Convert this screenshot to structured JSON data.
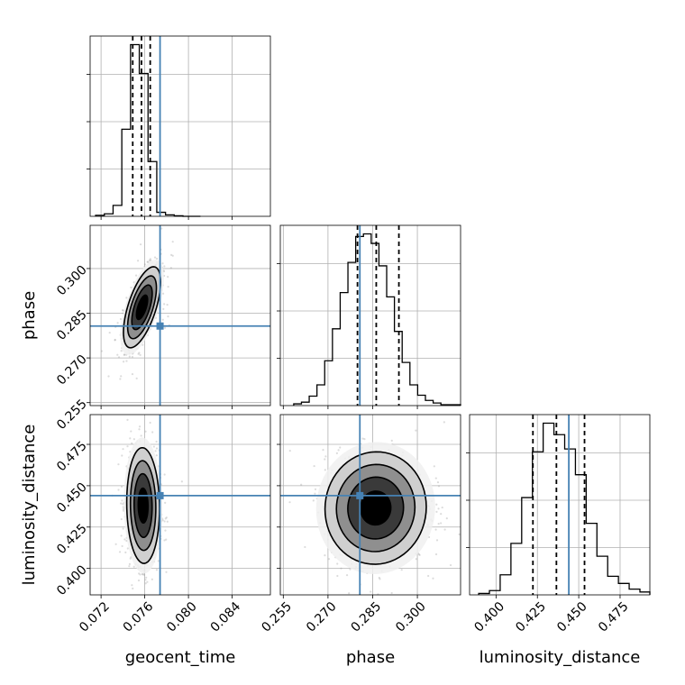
{
  "chart_data": {
    "type": "corner",
    "parameters": [
      {
        "id": "geocent_time",
        "label": "geocent_time",
        "range": [
          0.071,
          0.0875
        ],
        "ticks": [
          0.072,
          0.076,
          0.08,
          0.084
        ],
        "tick_labels": [
          "0.072",
          "0.076",
          "0.080",
          "0.084"
        ],
        "truth": 0.0774,
        "median": 0.0757,
        "quantile_low": 0.0749,
        "quantile_high": 0.0765,
        "histogram": {
          "edges": [
            0.0715,
            0.0723,
            0.0731,
            0.0739,
            0.0747,
            0.0755,
            0.0763,
            0.0771,
            0.0779,
            0.0787,
            0.0795,
            0.0803,
            0.0811
          ],
          "counts": [
            2,
            5,
            22,
            175,
            345,
            287,
            110,
            8,
            3,
            1,
            0,
            0
          ]
        }
      },
      {
        "id": "phase",
        "label": "phase",
        "range": [
          0.254,
          0.3145
        ],
        "ticks": [
          0.255,
          0.27,
          0.285,
          0.3
        ],
        "tick_labels": [
          "0.255",
          "0.270",
          "0.285",
          "0.300"
        ],
        "truth": 0.2807,
        "median": 0.2862,
        "quantile_low": 0.2799,
        "quantile_high": 0.2938,
        "histogram": {
          "edges": [
            0.2585,
            0.2611,
            0.2637,
            0.2663,
            0.2689,
            0.2715,
            0.2741,
            0.2767,
            0.2793,
            0.2819,
            0.2845,
            0.2871,
            0.2897,
            0.2923,
            0.2949,
            0.2975,
            0.3001,
            0.3027,
            0.3053,
            0.3079,
            0.3145
          ],
          "counts": [
            4,
            8,
            22,
            48,
            104,
            178,
            262,
            332,
            392,
            398,
            376,
            324,
            252,
            172,
            100,
            48,
            24,
            12,
            6,
            2
          ]
        }
      },
      {
        "id": "luminosity_distance",
        "label": "luminosity_distance",
        "range": [
          0.384,
          0.493
        ],
        "ticks": [
          0.4,
          0.425,
          0.45,
          0.475
        ],
        "tick_labels": [
          "0.400",
          "0.425",
          "0.450",
          "0.475"
        ],
        "truth": 0.444,
        "median": 0.4365,
        "quantile_low": 0.4223,
        "quantile_high": 0.4535,
        "histogram": {
          "edges": [
            0.3895,
            0.396,
            0.4025,
            0.409,
            0.4155,
            0.422,
            0.4285,
            0.435,
            0.4415,
            0.448,
            0.4545,
            0.461,
            0.4675,
            0.474,
            0.4805,
            0.487,
            0.493
          ],
          "counts": [
            2,
            6,
            28,
            72,
            136,
            200,
            240,
            224,
            204,
            168,
            100,
            54,
            26,
            16,
            8,
            4
          ]
        }
      }
    ],
    "pairs": [
      {
        "x": "geocent_time",
        "y": "phase",
        "truth": [
          0.0774,
          0.2807
        ],
        "mean": [
          0.07575,
          0.287
        ],
        "sd": [
          0.00085,
          0.0068
        ],
        "corr": 0.62
      },
      {
        "x": "geocent_time",
        "y": "luminosity_distance",
        "truth": [
          0.0774,
          0.444
        ],
        "mean": [
          0.07585,
          0.438
        ],
        "sd": [
          0.00075,
          0.0175
        ],
        "corr": -0.05
      },
      {
        "x": "phase",
        "y": "luminosity_distance",
        "truth": [
          0.2807,
          0.444
        ],
        "mean": [
          0.286,
          0.4365
        ],
        "sd": [
          0.0085,
          0.017
        ],
        "corr": 0.02
      }
    ],
    "diagonal_y_ticks": 3,
    "grid": true,
    "contour_levels_sigma": [
      0.6,
      1.1,
      1.55,
      2.0
    ],
    "colors": {
      "truth": "#4682b4",
      "histogram": "#000000",
      "contour": "#000000"
    }
  }
}
